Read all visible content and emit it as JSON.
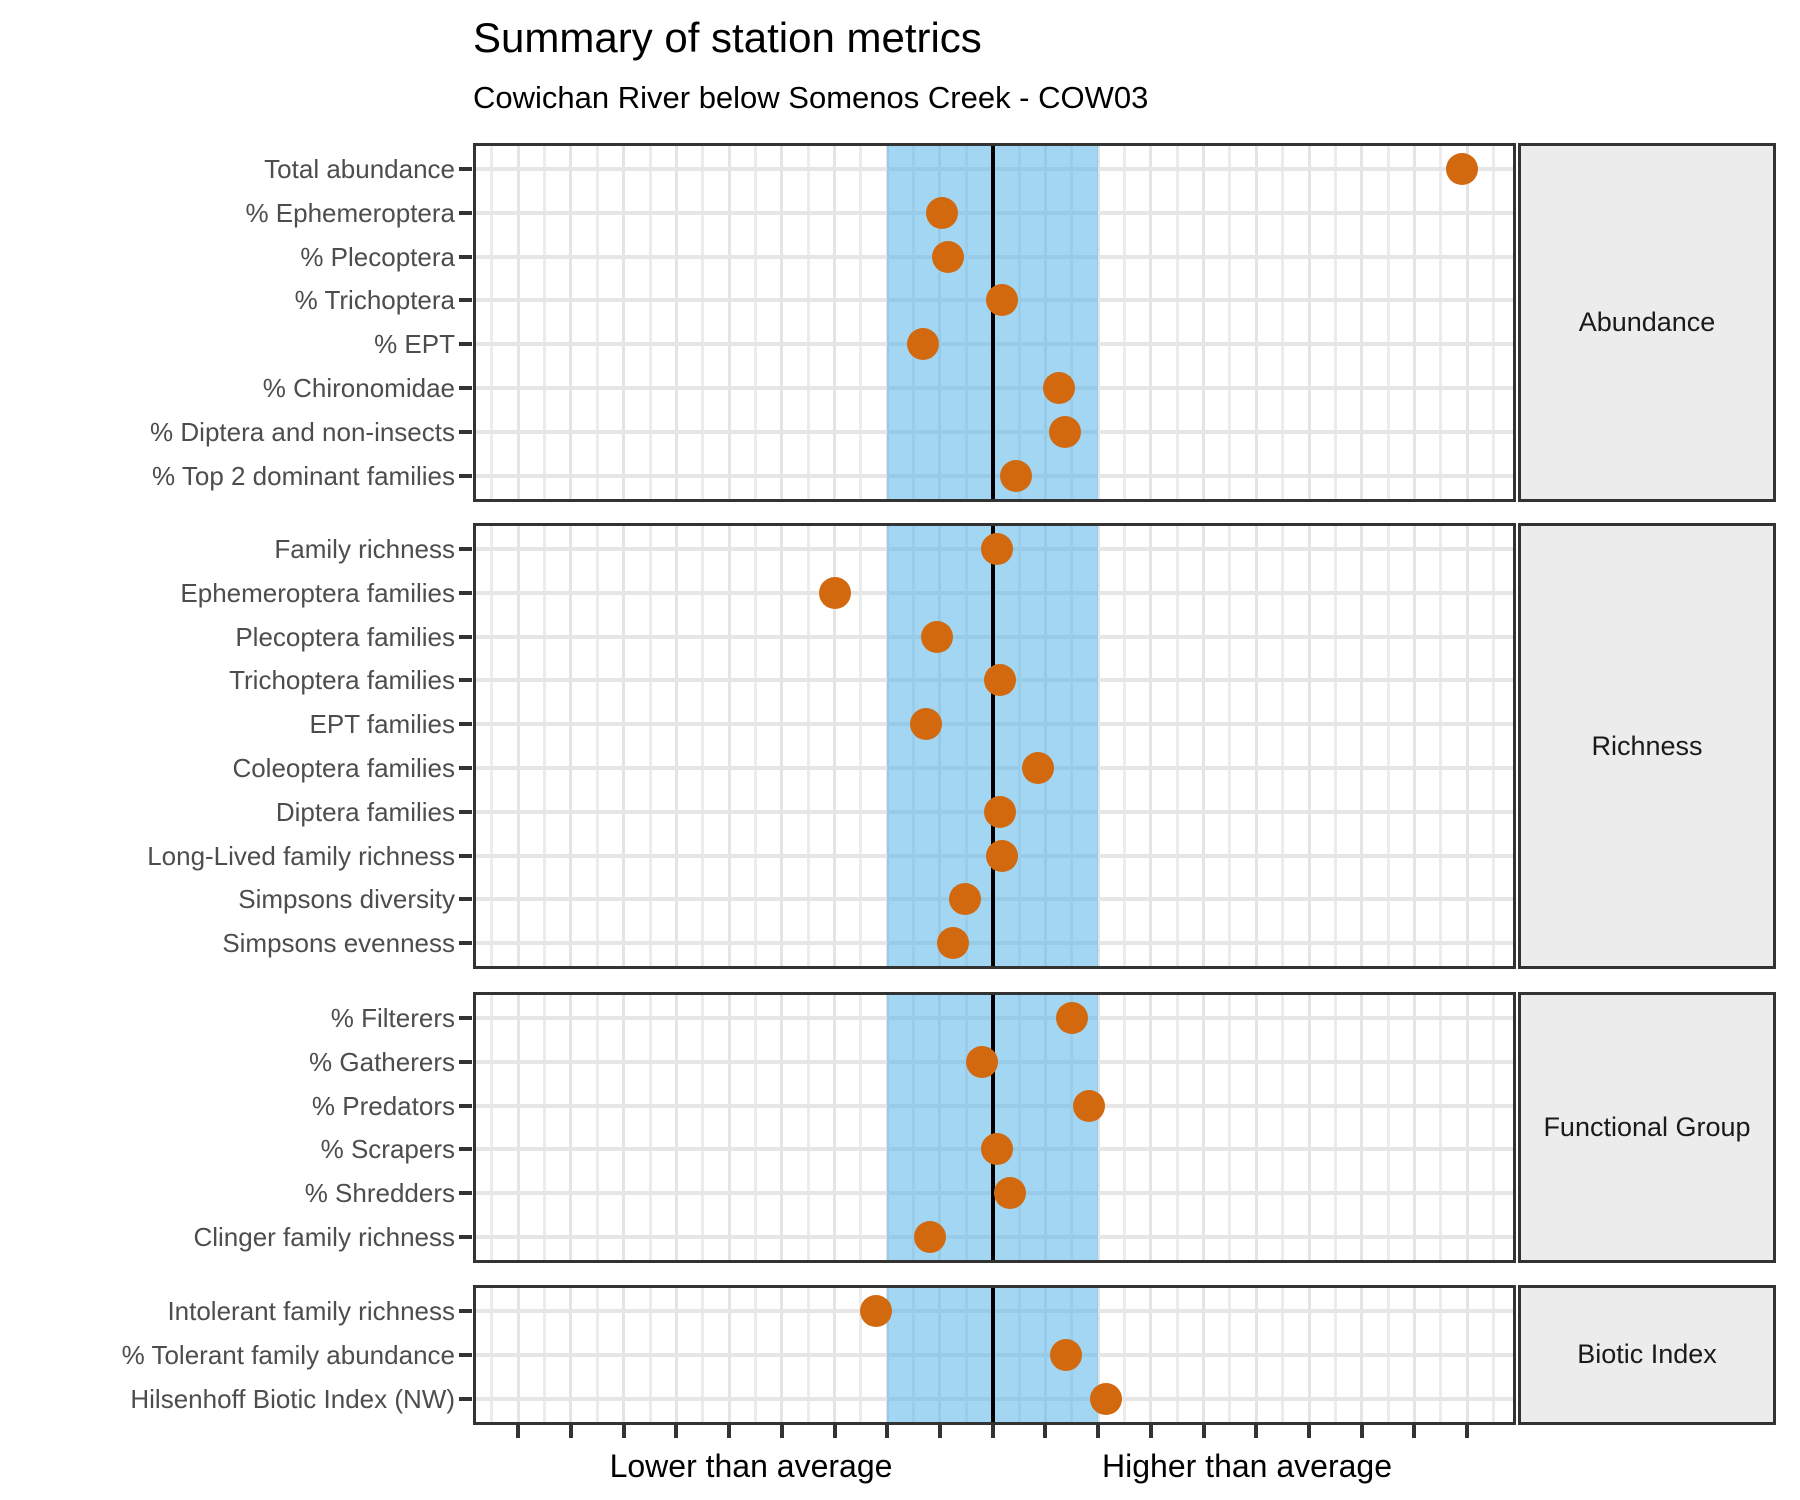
{
  "header": {
    "title": "Summary of station metrics",
    "subtitle": "Cowichan River below Somenos Creek - COW03"
  },
  "chart_data": {
    "type": "scatter",
    "subtype": "horizontal-dot-plot-faceted",
    "title": "Summary of station metrics",
    "subtitle": "Cowichan River below Somenos Creek - COW03",
    "x_axis": {
      "label_lower": "Lower than average",
      "label_higher": "Higher than average",
      "units": "deviation from average, in axis tick units (no numeric labels shown)",
      "xlim": [
        -9.9,
        9.9
      ],
      "tick_count": 19,
      "center_line_value": 0,
      "reference_band": [
        -2,
        2
      ],
      "grid": "major and minor vertical gridlines; horizontal gridline per metric row"
    },
    "legend": "none",
    "panels": [
      {
        "label": "Abundance",
        "rows": [
          {
            "metric": "Total abundance",
            "value": 8.91
          },
          {
            "metric": "% Ephemeroptera",
            "value": -0.97
          },
          {
            "metric": "% Plecoptera",
            "value": -0.85
          },
          {
            "metric": "% Trichoptera",
            "value": 0.17
          },
          {
            "metric": "% EPT",
            "value": -1.32
          },
          {
            "metric": "% Chironomidae",
            "value": 1.26
          },
          {
            "metric": "% Diptera and non-insects",
            "value": 1.38
          },
          {
            "metric": "% Top 2 dominant families",
            "value": 0.44
          }
        ]
      },
      {
        "label": "Richness",
        "rows": [
          {
            "metric": "Family richness",
            "value": 0.08
          },
          {
            "metric": "Ephemeroptera families",
            "value": -3.0
          },
          {
            "metric": "Plecoptera families",
            "value": -1.05
          },
          {
            "metric": "Trichoptera families",
            "value": 0.13
          },
          {
            "metric": "EPT families",
            "value": -1.27
          },
          {
            "metric": "Coleoptera families",
            "value": 0.85
          },
          {
            "metric": "Diptera families",
            "value": 0.14
          },
          {
            "metric": "Long-Lived family richness",
            "value": 0.17
          },
          {
            "metric": "Simpsons diversity",
            "value": -0.53
          },
          {
            "metric": "Simpsons evenness",
            "value": -0.76
          }
        ]
      },
      {
        "label": "Functional Group",
        "rows": [
          {
            "metric": "% Filterers",
            "value": 1.5
          },
          {
            "metric": "% Gatherers",
            "value": -0.21
          },
          {
            "metric": "% Predators",
            "value": 1.83
          },
          {
            "metric": "% Scrapers",
            "value": 0.09
          },
          {
            "metric": "% Shredders",
            "value": 0.33
          },
          {
            "metric": "Clinger family richness",
            "value": -1.19
          }
        ]
      },
      {
        "label": "Biotic Index",
        "rows": [
          {
            "metric": "Intolerant family richness",
            "value": -2.21
          },
          {
            "metric": "% Tolerant family abundance",
            "value": 1.39
          },
          {
            "metric": "Hilsenhoff Biotic Index (NW)",
            "value": 2.15
          }
        ]
      }
    ],
    "colors": {
      "point": "#D2690F",
      "reference_band": "rgba(86,180,233,0.55)",
      "center_line": "#000000",
      "panel_border": "#333333",
      "strip_background": "#ECECEC",
      "axis_text": "#4D4D4D"
    }
  }
}
